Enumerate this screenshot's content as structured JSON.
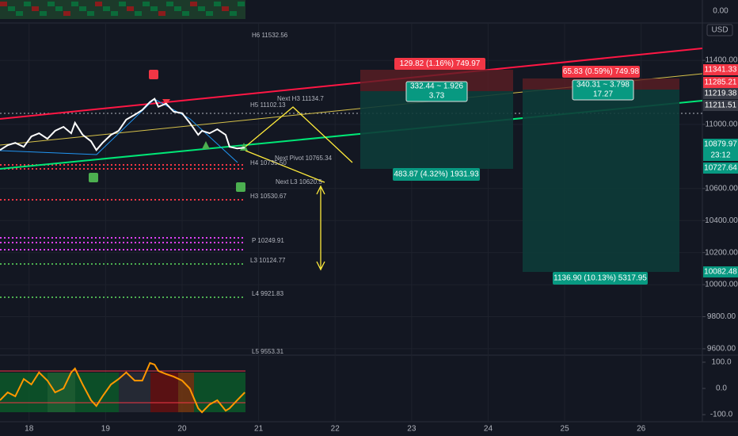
{
  "chart_data": [
    {
      "type": "line",
      "color": "#ffffff",
      "x": [
        17.62,
        17.72,
        17.82,
        17.93,
        18.03,
        18.13,
        18.24,
        18.34,
        18.45,
        18.55,
        18.6,
        18.7,
        18.81,
        18.88,
        18.96,
        19.07,
        19.17,
        19.27,
        19.38,
        19.48,
        19.58,
        19.64,
        19.69,
        19.79,
        19.89,
        20.0,
        20.1,
        20.21,
        20.26,
        20.36,
        20.46,
        20.57,
        20.62,
        20.72,
        20.82
      ],
      "values": [
        10840,
        10870,
        10885,
        10860,
        10925,
        10945,
        10910,
        10960,
        10985,
        10945,
        11010,
        10935,
        10895,
        10840,
        10885,
        10935,
        10960,
        11030,
        11060,
        11090,
        11140,
        11160,
        11110,
        11130,
        11080,
        11070,
        11010,
        10935,
        10960,
        10945,
        10970,
        10935,
        10860,
        10850,
        10855
      ],
      "xlim": [
        17.62,
        26.8
      ],
      "xticks": [
        18,
        19,
        20,
        21,
        22,
        23,
        24,
        25,
        26
      ],
      "ylim": [
        9565,
        11628
      ],
      "yticks": [
        {
          "value": 11400,
          "label": "11400.00"
        },
        {
          "value": 11000,
          "label": "11000.00"
        },
        {
          "value": 10600,
          "label": "10600.00"
        },
        {
          "value": 10400,
          "label": "10400.00"
        },
        {
          "value": 10200,
          "label": "10200.00"
        },
        {
          "value": 10000,
          "label": "10000.00"
        },
        {
          "value": 9800,
          "label": "9800.00"
        },
        {
          "value": 9600,
          "label": "9600.00"
        }
      ],
      "grid": true
    },
    {
      "type": "line",
      "color": "#ff9800",
      "x": [
        17.62,
        17.72,
        17.82,
        17.93,
        18.03,
        18.13,
        18.24,
        18.34,
        18.45,
        18.55,
        18.6,
        18.7,
        18.81,
        18.88,
        18.96,
        19.07,
        19.17,
        19.27,
        19.38,
        19.48,
        19.58,
        19.64,
        19.69,
        19.79,
        19.89,
        20.0,
        20.1,
        20.21,
        20.26,
        20.36,
        20.46,
        20.57,
        20.62,
        20.72,
        20.82
      ],
      "values": [
        -45,
        -15,
        -30,
        36,
        15,
        61,
        30,
        -15,
        0,
        61,
        76,
        15,
        -45,
        -67,
        -30,
        15,
        36,
        61,
        30,
        30,
        97,
        91,
        67,
        55,
        45,
        30,
        0,
        -76,
        -91,
        -61,
        -45,
        -85,
        -76,
        -45,
        -15
      ],
      "xlim": [
        17.62,
        26.8
      ],
      "ylim": [
        -121,
        121
      ],
      "yticks": [
        {
          "value": 100,
          "label": "100.0"
        },
        {
          "value": 0,
          "label": "0.0"
        },
        {
          "value": -100,
          "label": "-100.0"
        }
      ]
    }
  ],
  "top_pane_value": "0.00",
  "currency": "USD",
  "levels": [
    "H6 11532.56",
    "H5 11102.13",
    "Next H3 11134.7",
    "Next Pivot 10765.34",
    "H4 10735.50",
    "Next L3 10620.5",
    "H3 10530.67",
    "P 10249.91",
    "L3 10124.77",
    "L4 9921.83",
    "L5 9553.31"
  ],
  "positions": [
    "129.82 (1.16%) 749.97",
    "332.44 ~ 1.926",
    "3.73",
    "483.87 (4.32%) 1931.93",
    "65.83 (0.59%) 749.98",
    "340.31 ~ 3.798",
    "17.27",
    "1136.90 (10.13%) 5317.95"
  ],
  "price_tags": [
    "11341.33",
    "11285.21",
    "11219.38",
    "11211.51",
    "10879.97",
    "23:12",
    "10727.64",
    "10082.48"
  ]
}
